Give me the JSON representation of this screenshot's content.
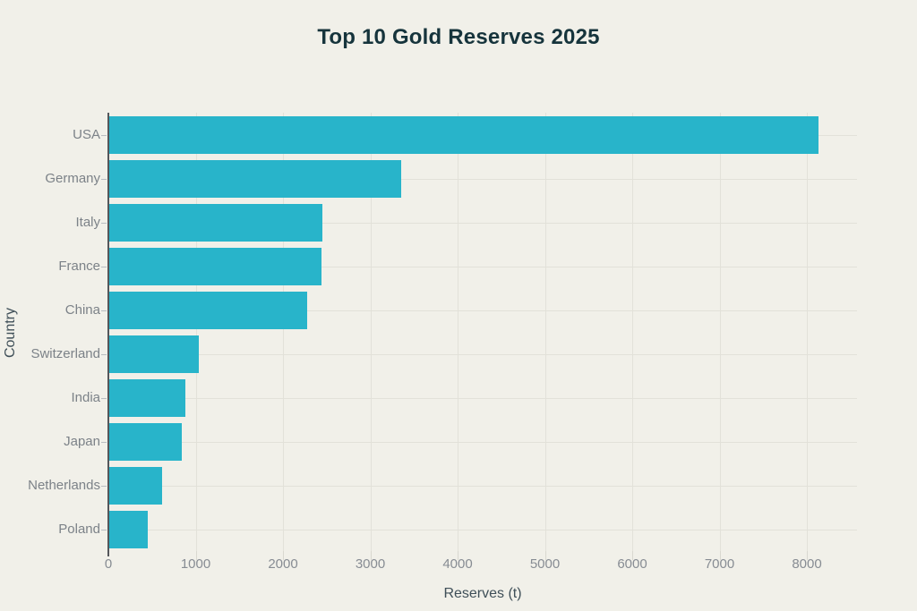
{
  "chart_data": {
    "type": "bar",
    "orientation": "horizontal",
    "title": "Top 10 Gold Reserves 2025",
    "xlabel": "Reserves (t)",
    "ylabel": "Country",
    "categories": [
      "USA",
      "Germany",
      "Italy",
      "France",
      "China",
      "Switzerland",
      "India",
      "Japan",
      "Netherlands",
      "Poland"
    ],
    "values": [
      8133,
      3352,
      2452,
      2437,
      2280,
      1040,
      880,
      846,
      612,
      448
    ],
    "x_ticks": [
      0,
      1000,
      2000,
      3000,
      4000,
      5000,
      6000,
      7000,
      8000
    ],
    "xlim": [
      0,
      8570
    ],
    "grid": true,
    "legend": "none",
    "colors": {
      "bar": "#28b4ca",
      "background": "#f1f0e9",
      "title": "#16343c",
      "axis_title": "#3f4f58",
      "tick_label": "#7c8288",
      "gridline": "#e2e1d9",
      "axis_line": "#54565a"
    }
  }
}
